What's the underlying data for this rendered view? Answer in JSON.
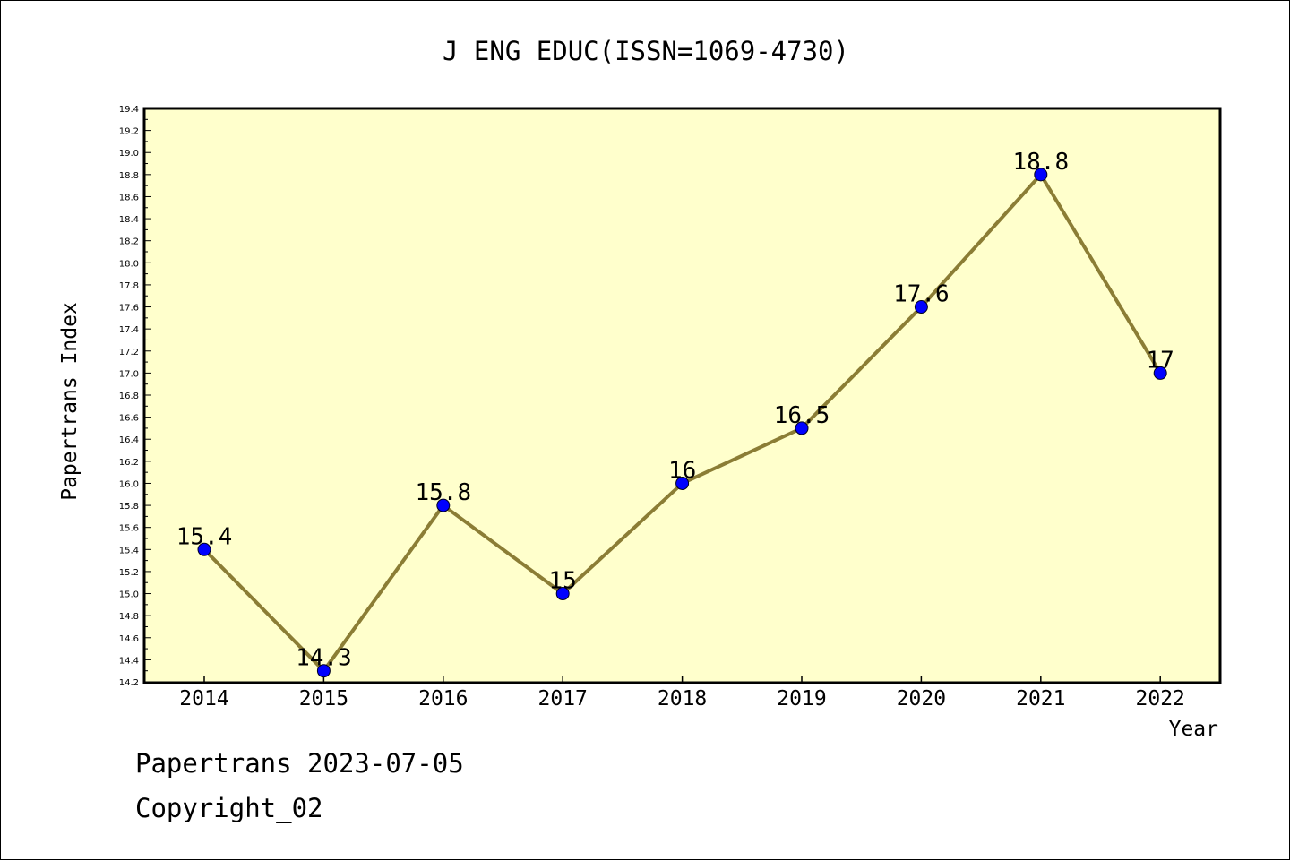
{
  "colors": {
    "plot_background": "#ffffcc",
    "line": "#8b7d35",
    "marker": "#0000ff",
    "axis": "#000000"
  },
  "chart_data": {
    "type": "line",
    "title": "J ENG EDUC(ISSN=1069-4730)",
    "xlabel": "Year",
    "ylabel": "Papertrans Index",
    "categories": [
      "2014",
      "2015",
      "2016",
      "2017",
      "2018",
      "2019",
      "2020",
      "2021",
      "2022"
    ],
    "series": [
      {
        "values": [
          15.4,
          14.3,
          15.8,
          15.0,
          16.0,
          16.5,
          17.6,
          18.8,
          17.0
        ],
        "labels": [
          "15.4",
          "14.3",
          "15.8",
          "15",
          "16",
          "16.5",
          "17.6",
          "18.8",
          "17"
        ]
      }
    ],
    "ylim": [
      14.2,
      19.4
    ],
    "y_ticks": [
      "14.2",
      "14.4",
      "14.6",
      "14.8",
      "15.0",
      "15.2",
      "15.4",
      "15.6",
      "15.8",
      "16.0",
      "16.2",
      "16.4",
      "16.6",
      "16.8",
      "17.0",
      "17.2",
      "17.4",
      "17.6",
      "17.8",
      "18.0",
      "18.2",
      "18.4",
      "18.6",
      "18.8",
      "19.0",
      "19.2",
      "19.4"
    ],
    "grid": false,
    "legend": "none"
  },
  "footer": {
    "line1": "Papertrans 2023-07-05",
    "line2": "Copyright_02"
  }
}
